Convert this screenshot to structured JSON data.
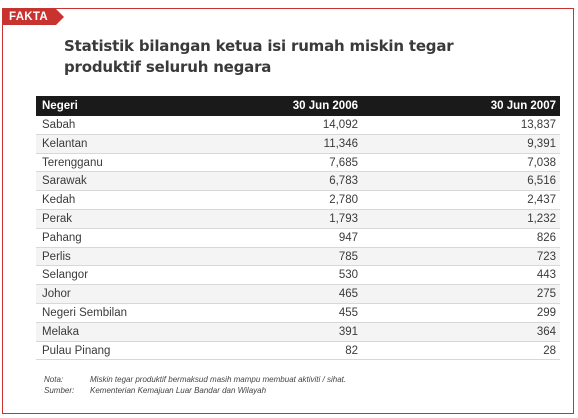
{
  "tag": "FAKTA",
  "title_line1": "Statistik bilangan ketua isi rumah miskin tegar",
  "title_line2": "produktif seluruh negara",
  "table": {
    "headers": [
      "Negeri",
      "30 Jun 2006",
      "30 Jun 2007"
    ],
    "rows": [
      [
        "Sabah",
        "14,092",
        "13,837"
      ],
      [
        "Kelantan",
        "11,346",
        "9,391"
      ],
      [
        "Terengganu",
        "7,685",
        "7,038"
      ],
      [
        "Sarawak",
        "6,783",
        "6,516"
      ],
      [
        "Kedah",
        "2,780",
        "2,437"
      ],
      [
        "Perak",
        "1,793",
        "1,232"
      ],
      [
        "Pahang",
        "947",
        "826"
      ],
      [
        "Perlis",
        "785",
        "723"
      ],
      [
        "Selangor",
        "530",
        "443"
      ],
      [
        "Johor",
        "465",
        "275"
      ],
      [
        "Negeri Sembilan",
        "455",
        "299"
      ],
      [
        "Melaka",
        "391",
        "364"
      ],
      [
        "Pulau Pinang",
        "82",
        "28"
      ]
    ]
  },
  "notes": {
    "note_label": "Nota:",
    "note_text": "Miskin tegar produktif bermaksud masih mampu membuat aktiviti / sihat.",
    "source_label": "Sumber:",
    "source_text": "Kementerian Kemajuan Luar Bandar dan Wilayah"
  },
  "colors": {
    "accent": "#c8322f",
    "header_bg": "#1a1a1a"
  }
}
